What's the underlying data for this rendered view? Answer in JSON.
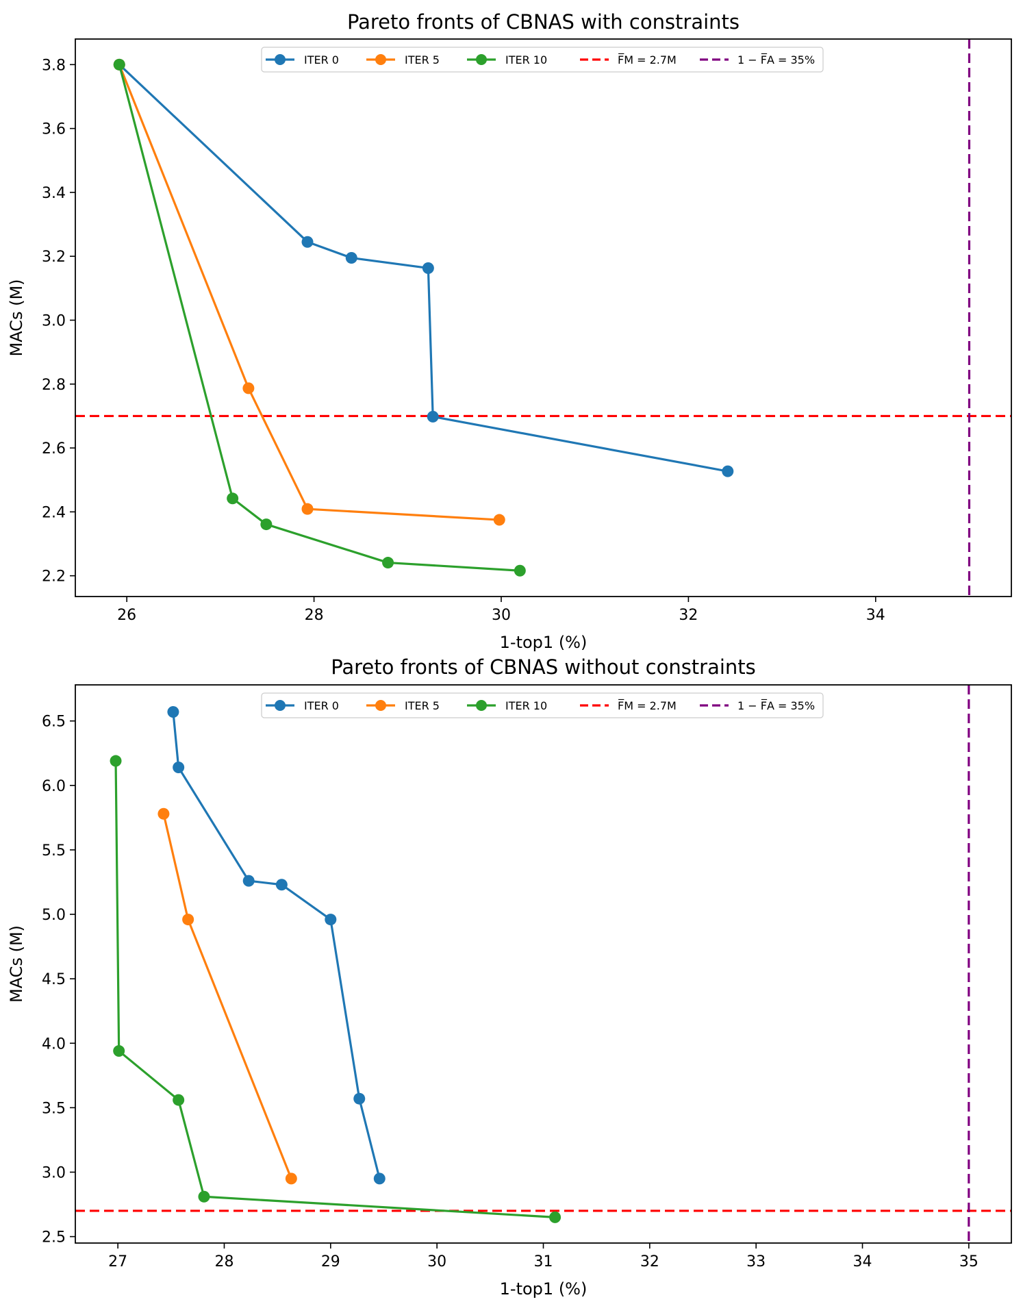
{
  "chart_data": [
    {
      "type": "line",
      "title": "Pareto fronts of CBNAS with constraints",
      "xlabel": "1-top1 (%)",
      "ylabel": "MACs (M)",
      "xlim": [
        25.45,
        35.45
      ],
      "ylim": [
        2.135,
        3.88
      ],
      "xticks": [
        26,
        28,
        30,
        32,
        34
      ],
      "yticks": [
        2.2,
        2.4,
        2.6,
        2.8,
        3.0,
        3.2,
        3.4,
        3.6,
        3.8
      ],
      "legend_position": "top-center",
      "grid": false,
      "series": [
        {
          "name": "ITER 0",
          "color": "#1f77b4",
          "points": [
            [
              25.92,
              3.8
            ],
            [
              27.93,
              3.245
            ],
            [
              28.4,
              3.195
            ],
            [
              29.22,
              3.163
            ],
            [
              29.27,
              2.698
            ],
            [
              32.42,
              2.527
            ]
          ]
        },
        {
          "name": "ITER 5",
          "color": "#ff7f0e",
          "points": [
            [
              25.92,
              3.8
            ],
            [
              27.3,
              2.787
            ],
            [
              27.93,
              2.409
            ],
            [
              29.98,
              2.375
            ]
          ]
        },
        {
          "name": "ITER 10",
          "color": "#2ca02c",
          "points": [
            [
              25.92,
              3.8
            ],
            [
              27.13,
              2.442
            ],
            [
              27.49,
              2.361
            ],
            [
              28.79,
              2.241
            ],
            [
              30.2,
              2.216
            ]
          ]
        }
      ],
      "reference_lines": [
        {
          "label": "F̅M = 2.7M",
          "orientation": "horizontal",
          "value": 2.7,
          "color": "#ff0000",
          "style": "dashed"
        },
        {
          "label": "1 − F̅A = 35%",
          "orientation": "vertical",
          "value": 35,
          "color": "#800080",
          "style": "dashed"
        }
      ]
    },
    {
      "type": "line",
      "title": "Pareto fronts of CBNAS without constraints",
      "xlabel": "1-top1 (%)",
      "ylabel": "MACs (M)",
      "xlim": [
        26.6,
        35.4
      ],
      "ylim": [
        2.45,
        6.78
      ],
      "xticks": [
        27,
        28,
        29,
        30,
        31,
        32,
        33,
        34,
        35
      ],
      "yticks": [
        2.5,
        3.0,
        3.5,
        4.0,
        4.5,
        5.0,
        5.5,
        6.0,
        6.5
      ],
      "legend_position": "top-center",
      "grid": false,
      "series": [
        {
          "name": "ITER 0",
          "color": "#1f77b4",
          "points": [
            [
              27.52,
              6.57
            ],
            [
              27.57,
              6.14
            ],
            [
              28.23,
              5.26
            ],
            [
              28.54,
              5.23
            ],
            [
              29.0,
              4.96
            ],
            [
              29.27,
              3.57
            ],
            [
              29.46,
              2.95
            ]
          ]
        },
        {
          "name": "ITER 5",
          "color": "#ff7f0e",
          "points": [
            [
              27.43,
              5.78
            ],
            [
              27.66,
              4.96
            ],
            [
              28.63,
              2.95
            ]
          ]
        },
        {
          "name": "ITER 10",
          "color": "#2ca02c",
          "points": [
            [
              26.98,
              6.19
            ],
            [
              27.01,
              3.94
            ],
            [
              27.57,
              3.56
            ],
            [
              27.81,
              2.81
            ],
            [
              31.11,
              2.65
            ]
          ]
        }
      ],
      "reference_lines": [
        {
          "label": "F̅M = 2.7M",
          "orientation": "horizontal",
          "value": 2.7,
          "color": "#ff0000",
          "style": "dashed"
        },
        {
          "label": "1 − F̅A = 35%",
          "orientation": "vertical",
          "value": 35,
          "color": "#800080",
          "style": "dashed"
        }
      ]
    }
  ]
}
